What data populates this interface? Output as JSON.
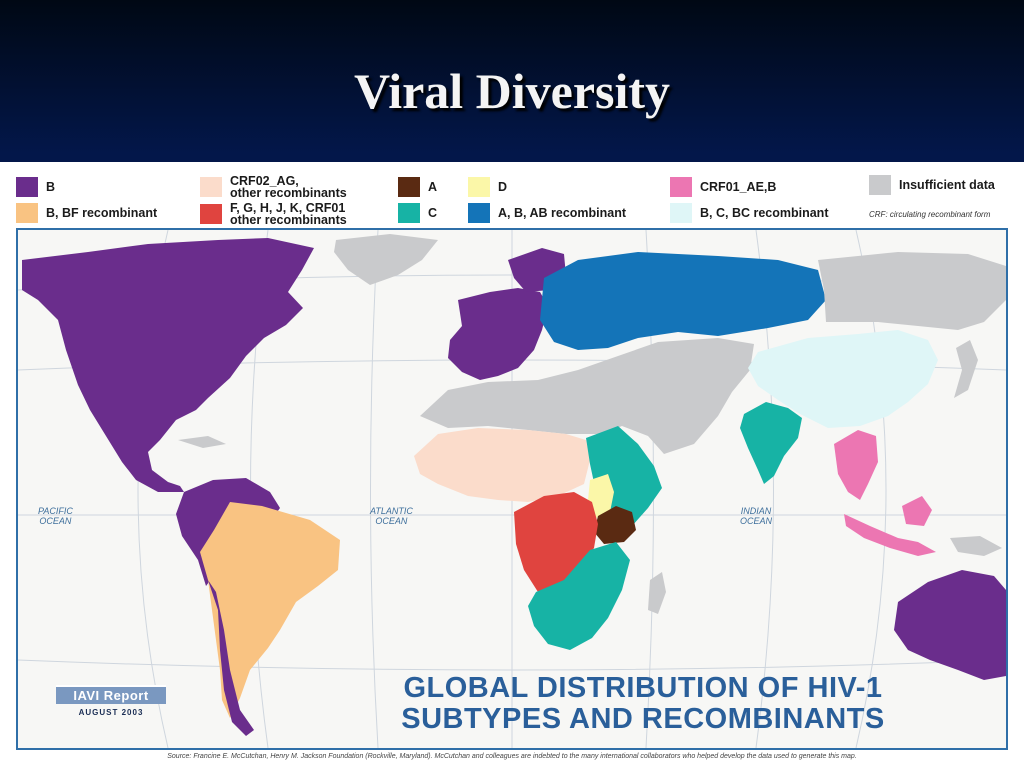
{
  "slide": {
    "title": "Viral Diversity"
  },
  "legend": {
    "items": [
      {
        "label": "B",
        "color": "#6a2d8c"
      },
      {
        "label": "B, BF recombinant",
        "color": "#f9c382"
      },
      {
        "label_line1": "CRF02_AG,",
        "label_line2": "other recombinants",
        "color": "#fbdccb"
      },
      {
        "label_line1": "F, G, H, J, K, CRF01",
        "label_line2": "other recombinants",
        "color": "#e0443f"
      },
      {
        "label": "A",
        "color": "#5a2a12"
      },
      {
        "label": "C",
        "color": "#17b3a5"
      },
      {
        "label": "D",
        "color": "#fbf7a8"
      },
      {
        "label": "A, B, AB recombinant",
        "color": "#1474b8"
      },
      {
        "label": "CRF01_AE,B",
        "color": "#ec76b2"
      },
      {
        "label": "B, C, BC recombinant",
        "color": "#dff6f7"
      },
      {
        "label": "Insufficient data",
        "color": "#c9cacc"
      }
    ],
    "crf_note": "CRF: circulating recombinant form"
  },
  "map": {
    "oceans": {
      "pacific_line1": "PACIFIC",
      "pacific_line2": "OCEAN",
      "atlantic_line1": "ATLANTIC",
      "atlantic_line2": "OCEAN",
      "indian_line1": "INDIAN",
      "indian_line2": "OCEAN"
    },
    "title_line1": "GLOBAL DISTRIBUTION OF HIV-1",
    "title_line2": "SUBTYPES AND RECOMBINANTS",
    "report_name": "IAVI Report",
    "report_date": "AUGUST 2003"
  },
  "source": "Source: Francine E. McCutchan, Henry M. Jackson Foundation (Rockville, Maryland). McCutchan and colleagues are indebted to the many international collaborators who helped develop the data used to generate this map."
}
